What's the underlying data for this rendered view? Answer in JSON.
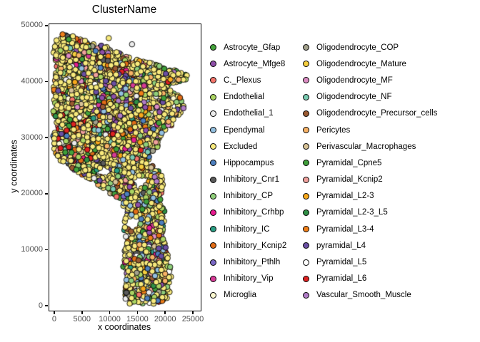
{
  "title": "ClusterName",
  "chart_data": {
    "type": "scatter",
    "title": "ClusterName",
    "xlabel": "x coordinates",
    "ylabel": "y coordinates",
    "xlim": [
      -1030,
      26290
    ],
    "ylim": [
      -760,
      50380
    ],
    "xticks": [
      0,
      5000,
      10000,
      15000,
      20000,
      25000
    ],
    "yticks": [
      0,
      10000,
      20000,
      30000,
      40000,
      50000
    ],
    "grid": false,
    "legend_position": "right",
    "series": [
      {
        "name": "Astrocyte_Gfap",
        "color": "#44a33c",
        "weight": 1.6
      },
      {
        "name": "Astrocyte_Mfge8",
        "color": "#8e4fa8",
        "weight": 1.6
      },
      {
        "name": "C._Plexus",
        "color": "#f4746a",
        "weight": 1.2
      },
      {
        "name": "Endothelial",
        "color": "#aad462",
        "weight": 3.5
      },
      {
        "name": "Endothelial_1",
        "color": "#ececec",
        "weight": 1.6
      },
      {
        "name": "Ependymal",
        "color": "#93bfdf",
        "weight": 2.2
      },
      {
        "name": "Excluded",
        "color": "#f7e97c",
        "weight": 52.0
      },
      {
        "name": "Hippocampus",
        "color": "#4d7fbe",
        "weight": 1.4
      },
      {
        "name": "Inhibitory_Cnr1",
        "color": "#5b5b5b",
        "weight": 1.0
      },
      {
        "name": "Inhibitory_CP",
        "color": "#8fce7a",
        "weight": 3.0
      },
      {
        "name": "Inhibitory_Crhbp",
        "color": "#e61c8f",
        "weight": 0.8
      },
      {
        "name": "Inhibitory_IC",
        "color": "#2a9d83",
        "weight": 1.0
      },
      {
        "name": "Inhibitory_Kcnip2",
        "color": "#e06c17",
        "weight": 1.5
      },
      {
        "name": "Inhibitory_Pthlh",
        "color": "#7a68c4",
        "weight": 0.8
      },
      {
        "name": "Inhibitory_Vip",
        "color": "#d63a96",
        "weight": 0.7
      },
      {
        "name": "Microglia",
        "color": "#fbf8cf",
        "weight": 1.0
      },
      {
        "name": "Oligodendrocyte_COP",
        "color": "#a3a18c",
        "weight": 2.0
      },
      {
        "name": "Oligodendrocyte_Mature",
        "color": "#f5ce3e",
        "weight": 1.6
      },
      {
        "name": "Oligodendrocyte_MF",
        "color": "#dc8cc3",
        "weight": 0.9
      },
      {
        "name": "Oligodendrocyte_NF",
        "color": "#7acbb2",
        "weight": 1.0
      },
      {
        "name": "Oligodendrocyte_Precursor_cells",
        "color": "#9a5a32",
        "weight": 1.2
      },
      {
        "name": "Pericytes",
        "color": "#f7b266",
        "weight": 2.4
      },
      {
        "name": "Perivascular_Macrophages",
        "color": "#d7c296",
        "weight": 1.0
      },
      {
        "name": "Pyramidal_Cpne5",
        "color": "#3f9e3a",
        "weight": 2.8
      },
      {
        "name": "Pyramidal_Kcnip2",
        "color": "#efa09c",
        "weight": 1.4
      },
      {
        "name": "Pyramidal_L2-3",
        "color": "#f7a81c",
        "weight": 1.8
      },
      {
        "name": "Pyramidal_L2-3_L5",
        "color": "#2f8f45",
        "weight": 1.4
      },
      {
        "name": "Pyramidal_L3-4",
        "color": "#ef7f1a",
        "weight": 2.0
      },
      {
        "name": "pyramidal_L4",
        "color": "#6a4fa3",
        "weight": 2.6
      },
      {
        "name": "Pyramidal_L5",
        "color": "#ffffff",
        "weight": 0.7
      },
      {
        "name": "Pyramidal_L6",
        "color": "#dd2222",
        "weight": 1.6
      },
      {
        "name": "Vascular_Smooth_Muscle",
        "color": "#b07cc6",
        "weight": 1.0
      }
    ],
    "point_cloud": {
      "seed": 42,
      "grid_step": 500,
      "jitter": 260,
      "dropout": 0.05,
      "point_radius_px": 3.8,
      "outline_polygon": [
        [
          200,
          47600
        ],
        [
          1200,
          48600
        ],
        [
          3200,
          48400
        ],
        [
          5200,
          47600
        ],
        [
          7200,
          46900
        ],
        [
          9700,
          46300
        ],
        [
          12200,
          44900
        ],
        [
          14200,
          44300
        ],
        [
          16200,
          43900
        ],
        [
          18200,
          43300
        ],
        [
          21000,
          42400
        ],
        [
          23800,
          41600
        ],
        [
          24200,
          40700
        ],
        [
          21800,
          40000
        ],
        [
          19900,
          39400
        ],
        [
          21400,
          38400
        ],
        [
          23000,
          36900
        ],
        [
          23400,
          35200
        ],
        [
          21900,
          33600
        ],
        [
          21100,
          31900
        ],
        [
          19100,
          30700
        ],
        [
          18900,
          28400
        ],
        [
          17100,
          27000
        ],
        [
          17700,
          25100
        ],
        [
          19400,
          23900
        ],
        [
          19700,
          21200
        ],
        [
          18900,
          19400
        ],
        [
          19900,
          16600
        ],
        [
          19400,
          12800
        ],
        [
          20400,
          9700
        ],
        [
          21000,
          5700
        ],
        [
          20600,
          1900
        ],
        [
          19300,
          400
        ],
        [
          13400,
          300
        ],
        [
          12400,
          1700
        ],
        [
          12800,
          4500
        ],
        [
          12100,
          7700
        ],
        [
          12900,
          11500
        ],
        [
          12200,
          14000
        ],
        [
          12600,
          16800
        ],
        [
          12100,
          18800
        ],
        [
          10500,
          19800
        ],
        [
          8000,
          21500
        ],
        [
          5000,
          23400
        ],
        [
          1800,
          25400
        ],
        [
          400,
          26500
        ],
        [
          -300,
          28000
        ],
        [
          -400,
          30500
        ],
        [
          300,
          32500
        ],
        [
          -400,
          34500
        ],
        [
          -200,
          37500
        ],
        [
          -400,
          40500
        ],
        [
          200,
          43000
        ],
        [
          -300,
          45200
        ],
        [
          -100,
          46800
        ]
      ],
      "holes": [
        {
          "cx": 14000,
          "cy": 14800,
          "rx": 1400,
          "ry": 1200
        },
        {
          "cx": 15400,
          "cy": 22300,
          "rx": 1300,
          "ry": 1000
        },
        {
          "cx": 8900,
          "cy": 24100,
          "rx": 1100,
          "ry": 800
        }
      ],
      "regions": [
        {
          "x0": 11800,
          "x1": 21600,
          "y0": -800,
          "y1": 20000,
          "boost": {
            "Ependymal": 4,
            "Hippocampus": 2.2,
            "Excluded": 1.3,
            "Inhibitory_CP": 1.5
          }
        },
        {
          "x0": 7000,
          "x1": 16500,
          "y0": 33500,
          "y1": 40500,
          "boost": {
            "pyramidal_L4": 4,
            "Astrocyte_Mfge8": 2.5,
            "Inhibitory_Cnr1": 1.8
          }
        },
        {
          "x0": -1000,
          "x1": 9000,
          "y0": 31000,
          "y1": 34500,
          "boost": {
            "Pyramidal_L6": 5,
            "Inhibitory_Kcnip2": 1.5
          }
        },
        {
          "x0": -1000,
          "x1": 6500,
          "y0": 26500,
          "y1": 31000,
          "boost": {
            "C._Plexus": 2.5,
            "Pyramidal_Kcnip2": 2
          }
        },
        {
          "x0": -1000,
          "x1": 24500,
          "y0": 45500,
          "y1": 49000,
          "boost": {
            "Astrocyte_Gfap": 2,
            "Pyramidal_Cpne5": 2,
            "Oligodendrocyte_COP": 1.5
          }
        }
      ],
      "extra_points": [
        {
          "x": 9700,
          "y": 47900,
          "name": "Excluded"
        },
        {
          "x": 13900,
          "y": 46800,
          "name": "Endothelial_1"
        }
      ]
    }
  },
  "legend": {
    "rows_per_column": 16
  }
}
